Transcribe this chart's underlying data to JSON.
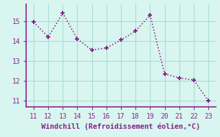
{
  "x": [
    11,
    12,
    13,
    14,
    15,
    16,
    17,
    18,
    19,
    20,
    21,
    22,
    23
  ],
  "y": [
    14.95,
    14.2,
    15.4,
    14.1,
    13.55,
    13.65,
    14.05,
    14.5,
    15.3,
    12.35,
    12.15,
    12.05,
    11.0
  ],
  "line_color": "#882288",
  "marker": "+",
  "background_color": "#d8f5f0",
  "grid_color": "#aaddcc",
  "xlabel": "Windchill (Refroidissement éolien,°C)",
  "xlim": [
    10.5,
    23.5
  ],
  "ylim": [
    10.7,
    15.85
  ],
  "xticks": [
    11,
    12,
    13,
    14,
    15,
    16,
    17,
    18,
    19,
    20,
    21,
    22,
    23
  ],
  "yticks": [
    11,
    12,
    13,
    14,
    15
  ],
  "tick_color": "#882288",
  "label_color": "#882288",
  "font_size": 7,
  "xlabel_fontsize": 7.5
}
